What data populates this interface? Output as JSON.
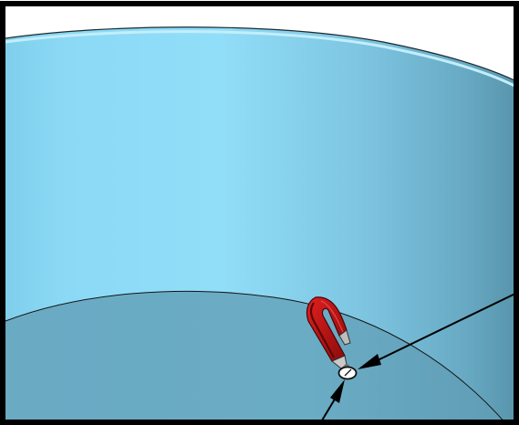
{
  "scene": {
    "colors": {
      "background": "#ffffff",
      "frame": "#000000",
      "wall_light": "#90dcf6",
      "wall_dark": "#5a9ab2",
      "wall_edge": "#b9ecfb",
      "floor": "#6aabc4",
      "floor_edge": "#1a1a1a",
      "magnet_red": "#d21414",
      "magnet_dark_red": "#7d0a0a",
      "magnet_tip": "#c9c9c9",
      "pointer_arrow": "#000000",
      "contact_marker": "#ffffff"
    },
    "objects": {
      "magnet": "horseshoe-magnet-icon",
      "contact": "contact-point-marker",
      "arrows": [
        "pointer-arrow-right",
        "pointer-arrow-bottom"
      ]
    }
  }
}
